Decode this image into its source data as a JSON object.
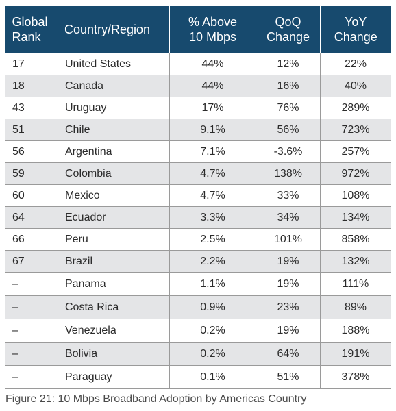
{
  "table": {
    "headers": {
      "rank_line1": "Global",
      "rank_line2": "Rank",
      "country": "Country/Region",
      "above_line1": "% Above",
      "above_line2": "10 Mbps",
      "qoq_line1": "QoQ",
      "qoq_line2": "Change",
      "yoy_line1": "YoY",
      "yoy_line2": "Change"
    },
    "rows": [
      {
        "rank": "17",
        "country": "United States",
        "above": "44%",
        "qoq": "12%",
        "yoy": "22%"
      },
      {
        "rank": "18",
        "country": "Canada",
        "above": "44%",
        "qoq": "16%",
        "yoy": "40%"
      },
      {
        "rank": "43",
        "country": "Uruguay",
        "above": "17%",
        "qoq": "76%",
        "yoy": "289%"
      },
      {
        "rank": "51",
        "country": "Chile",
        "above": "9.1%",
        "qoq": "56%",
        "yoy": "723%"
      },
      {
        "rank": "56",
        "country": "Argentina",
        "above": "7.1%",
        "qoq": "-3.6%",
        "yoy": "257%"
      },
      {
        "rank": "59",
        "country": "Colombia",
        "above": "4.7%",
        "qoq": "138%",
        "yoy": "972%"
      },
      {
        "rank": "60",
        "country": "Mexico",
        "above": "4.7%",
        "qoq": "33%",
        "yoy": "108%"
      },
      {
        "rank": "64",
        "country": "Ecuador",
        "above": "3.3%",
        "qoq": "34%",
        "yoy": "134%"
      },
      {
        "rank": "66",
        "country": "Peru",
        "above": "2.5%",
        "qoq": "101%",
        "yoy": "858%"
      },
      {
        "rank": "67",
        "country": "Brazil",
        "above": "2.2%",
        "qoq": "19%",
        "yoy": "132%"
      },
      {
        "rank": "–",
        "country": "Panama",
        "above": "1.1%",
        "qoq": "19%",
        "yoy": "111%"
      },
      {
        "rank": "–",
        "country": "Costa Rica",
        "above": "0.9%",
        "qoq": "23%",
        "yoy": "89%"
      },
      {
        "rank": "–",
        "country": "Venezuela",
        "above": "0.2%",
        "qoq": "19%",
        "yoy": "188%"
      },
      {
        "rank": "–",
        "country": "Bolivia",
        "above": "0.2%",
        "qoq": "64%",
        "yoy": "191%"
      },
      {
        "rank": "–",
        "country": "Paraguay",
        "above": "0.1%",
        "qoq": "51%",
        "yoy": "378%"
      }
    ]
  },
  "caption": "Figure 21: 10 Mbps Broadband Adoption by Americas Country",
  "colors": {
    "header_bg": "#174a6e",
    "stripe_bg": "#e4e5e7",
    "border": "#9a9a9a"
  }
}
